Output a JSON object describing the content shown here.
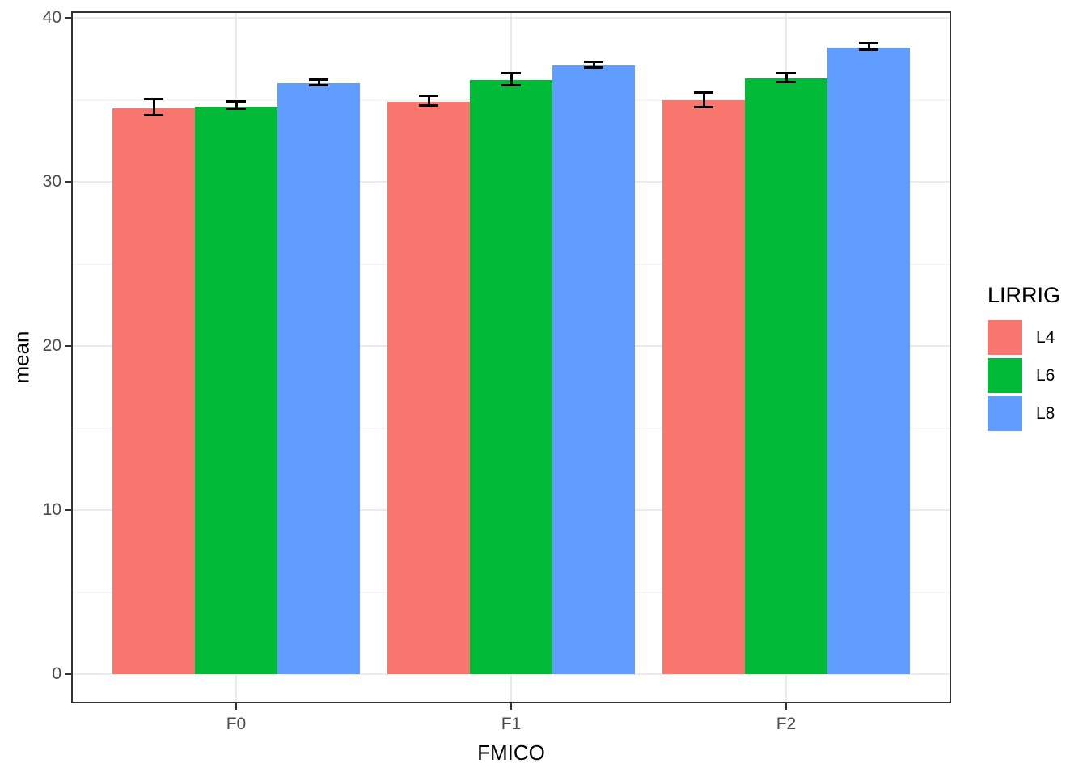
{
  "chart_data": {
    "type": "bar",
    "title": "",
    "xlabel": "FMICO",
    "ylabel": "mean",
    "categories": [
      "F0",
      "F1",
      "F2"
    ],
    "series": [
      {
        "name": "L4",
        "color": "#F8766D",
        "values": [
          34.5,
          34.9,
          35.0
        ],
        "error_low": [
          34.0,
          34.6,
          34.5
        ],
        "error_high": [
          35.1,
          35.3,
          35.5
        ]
      },
      {
        "name": "L6",
        "color": "#00BA38",
        "values": [
          34.6,
          36.2,
          36.3
        ],
        "error_low": [
          34.4,
          35.8,
          36.0
        ],
        "error_high": [
          35.0,
          36.7,
          36.7
        ]
      },
      {
        "name": "L8",
        "color": "#619CFF",
        "values": [
          36.0,
          37.1,
          38.2
        ],
        "error_low": [
          35.8,
          36.9,
          38.0
        ],
        "error_high": [
          36.3,
          37.4,
          38.5
        ]
      }
    ],
    "ylim": [
      0,
      40
    ],
    "yticks": [
      0,
      10,
      20,
      30,
      40
    ],
    "yticks_minor": [
      5,
      15,
      25,
      35
    ],
    "grid": true,
    "legend": {
      "title": "LIRRIG",
      "position": "right",
      "labels": [
        "L4",
        "L6",
        "L8"
      ]
    },
    "style": {
      "panel_background": "#FFFFFF",
      "panel_border_color": "#333333",
      "grid_major_color": "#EBEBEB",
      "grid_minor_color": "#F5F5F5",
      "axis_text_color": "#4D4D4D",
      "axis_title_color": "#000000",
      "error_bar_color": "#000000"
    }
  }
}
